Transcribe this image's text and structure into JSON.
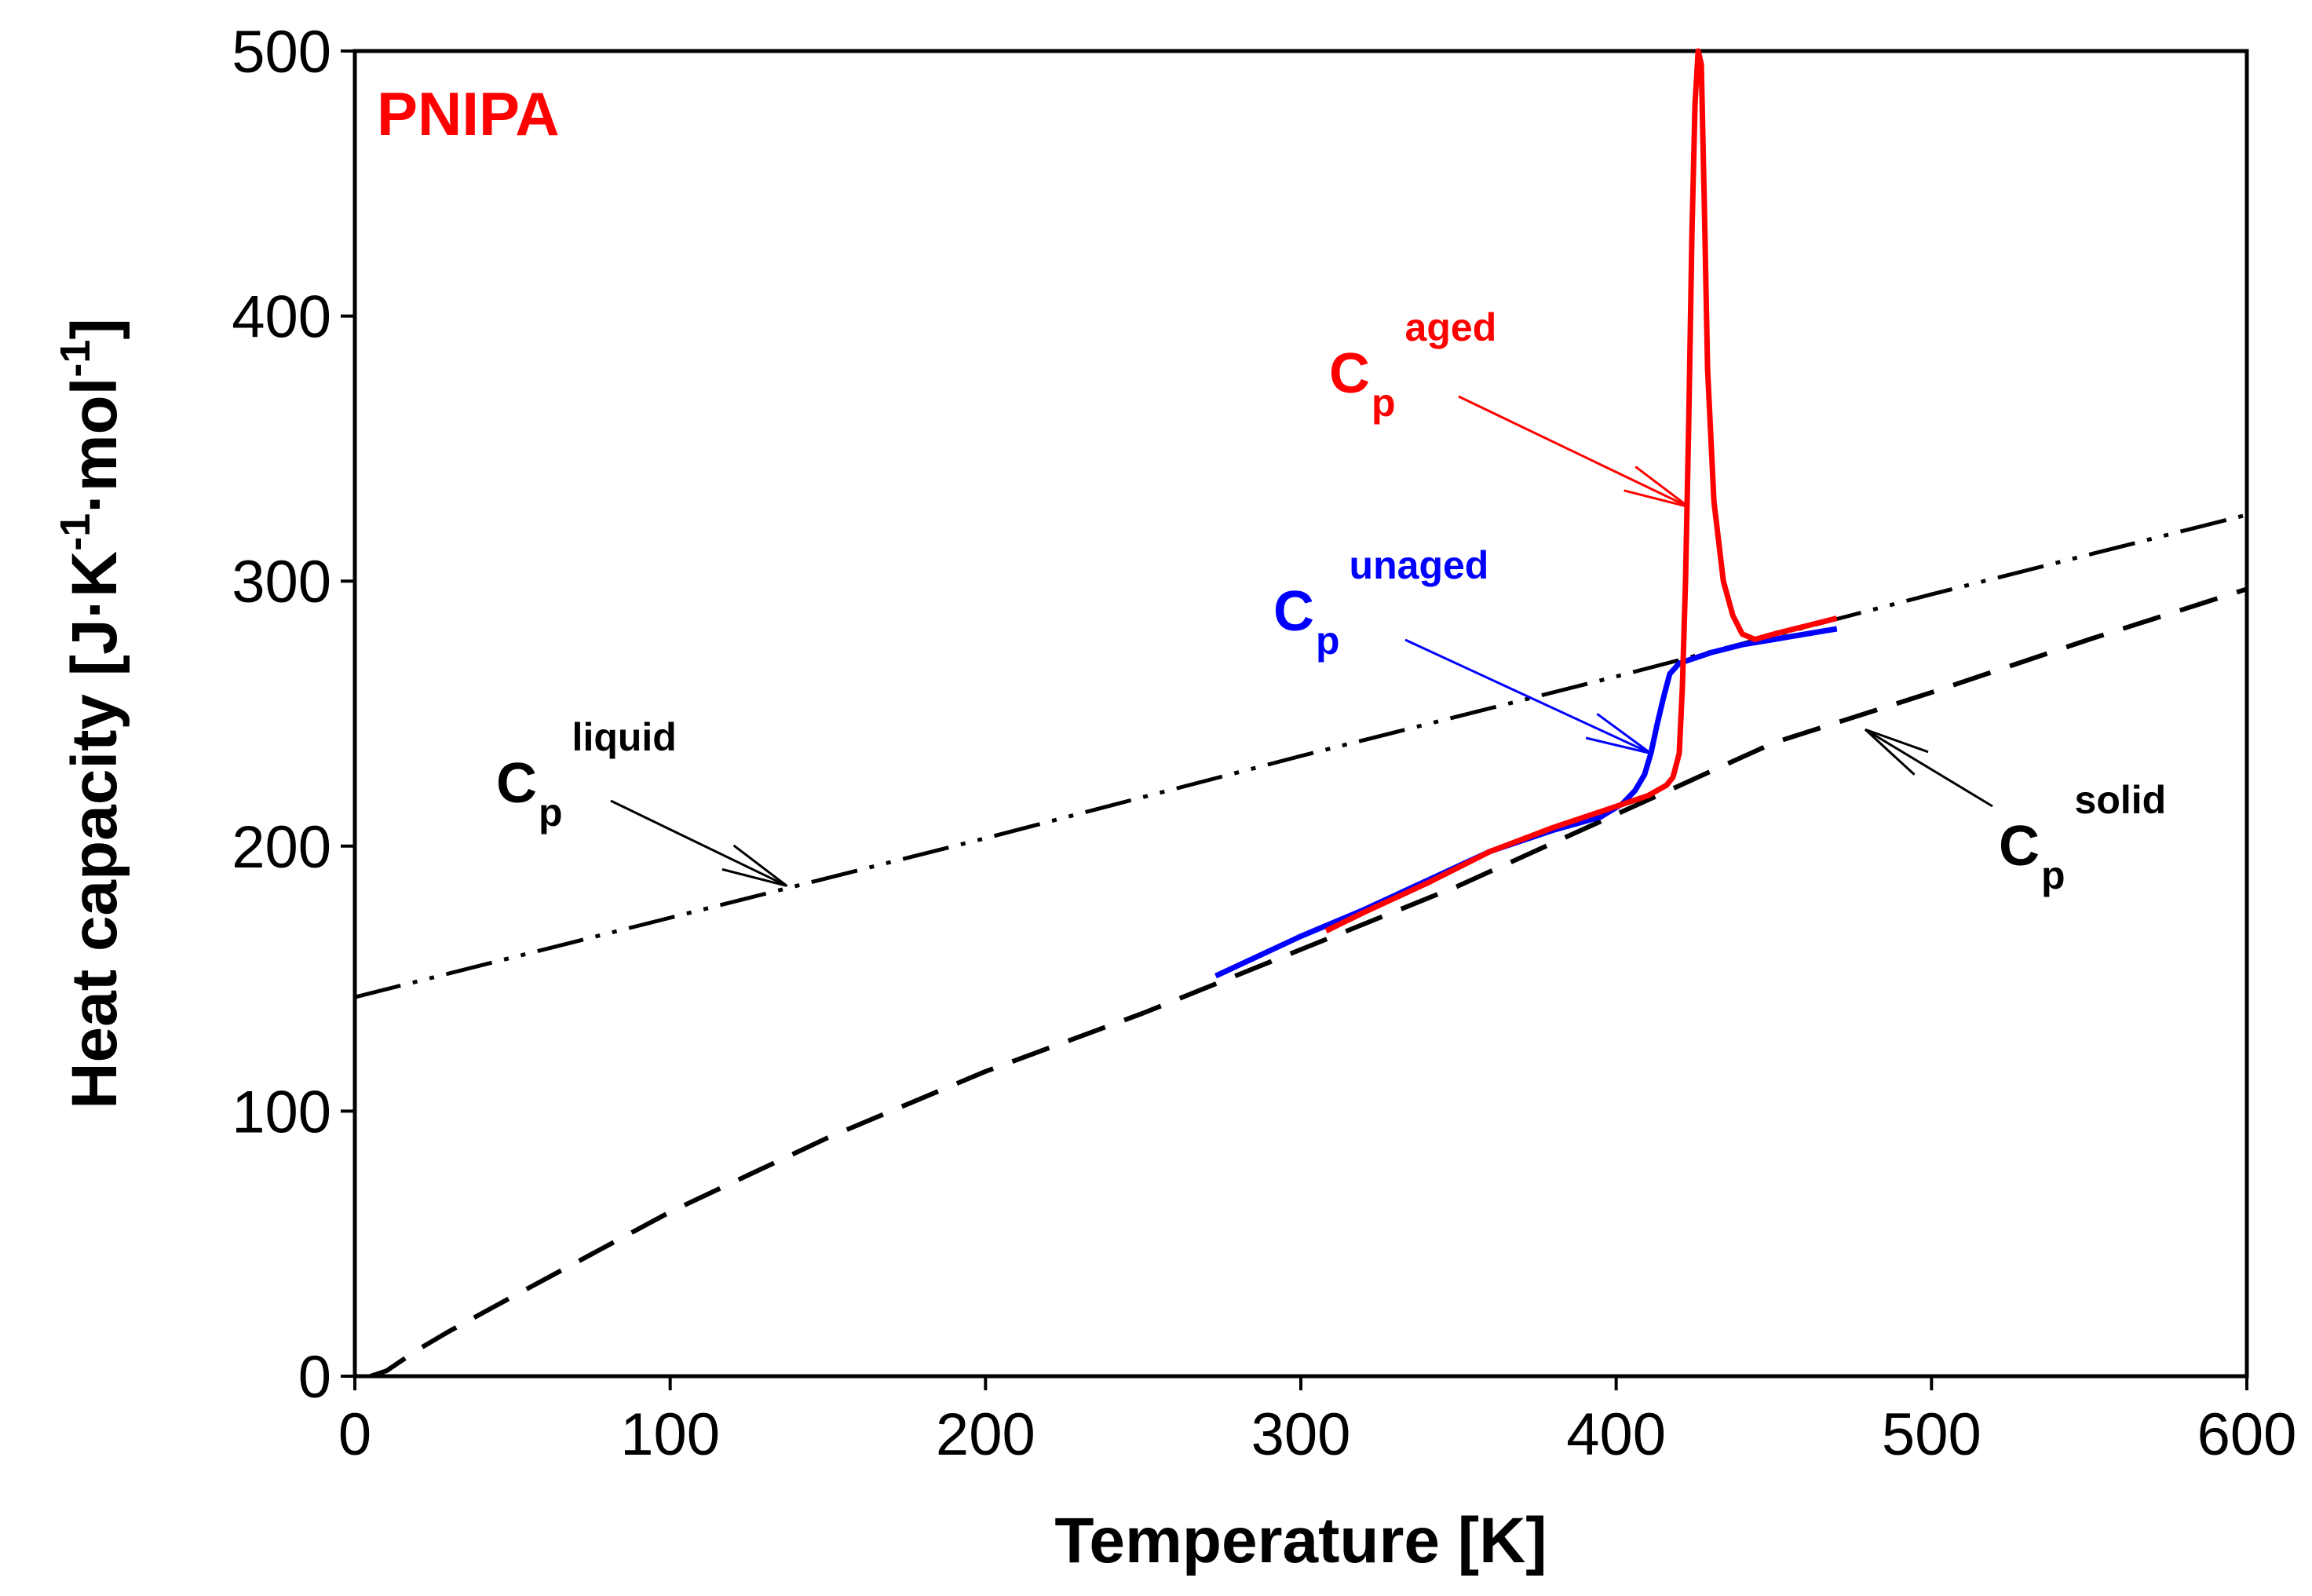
{
  "chart_data": {
    "type": "line",
    "title": "PNIPA",
    "xlabel": "Temperature [K]",
    "ylabel": {
      "main": "Heat capacity [J·K",
      "sup1": "-1",
      "mid": "·mol",
      "sup2": "-1",
      "end": "]"
    },
    "xlim": [
      0,
      600
    ],
    "ylim": [
      0,
      500
    ],
    "xticks": [
      "0",
      "100",
      "200",
      "300",
      "400",
      "500",
      "600"
    ],
    "yticks": [
      "0",
      "100",
      "200",
      "300",
      "400",
      "500"
    ],
    "grid": false,
    "series": [
      {
        "name": "Cp liquid",
        "style": "dash-dot-dot",
        "color": "#000000",
        "points": [
          [
            0,
            143
          ],
          [
            100,
            173
          ],
          [
            200,
            203
          ],
          [
            300,
            234
          ],
          [
            400,
            264
          ],
          [
            500,
            295
          ],
          [
            600,
            325
          ]
        ]
      },
      {
        "name": "Cp solid",
        "style": "dashed",
        "color": "#000000",
        "points": [
          [
            5,
            0
          ],
          [
            10,
            2
          ],
          [
            20,
            10
          ],
          [
            30,
            17
          ],
          [
            50,
            30
          ],
          [
            75,
            46
          ],
          [
            100,
            62
          ],
          [
            125,
            76
          ],
          [
            150,
            90
          ],
          [
            200,
            115
          ],
          [
            250,
            137
          ],
          [
            300,
            161
          ],
          [
            350,
            185
          ],
          [
            400,
            212
          ],
          [
            450,
            239
          ],
          [
            500,
            258
          ],
          [
            550,
            278
          ],
          [
            600,
            297
          ]
        ]
      },
      {
        "name": "Cp unaged",
        "style": "solid",
        "color": "#0000ff",
        "points": [
          [
            273,
            151
          ],
          [
            300,
            166
          ],
          [
            320,
            176
          ],
          [
            340,
            187
          ],
          [
            360,
            198
          ],
          [
            380,
            206
          ],
          [
            395,
            211
          ],
          [
            402,
            216
          ],
          [
            406,
            221
          ],
          [
            409,
            227
          ],
          [
            411,
            235
          ],
          [
            413,
            246
          ],
          [
            415,
            256
          ],
          [
            417,
            265
          ],
          [
            420,
            269
          ],
          [
            430,
            273
          ],
          [
            440,
            276
          ],
          [
            450,
            278
          ],
          [
            460,
            280
          ],
          [
            470,
            282
          ]
        ]
      },
      {
        "name": "Cp aged",
        "style": "solid",
        "color": "#ff0000",
        "points": [
          [
            308,
            168
          ],
          [
            320,
            175
          ],
          [
            340,
            186
          ],
          [
            360,
            198
          ],
          [
            380,
            207
          ],
          [
            400,
            215
          ],
          [
            410,
            219
          ],
          [
            416,
            223
          ],
          [
            418,
            226
          ],
          [
            420,
            235
          ],
          [
            421,
            260
          ],
          [
            422,
            300
          ],
          [
            423,
            360
          ],
          [
            424,
            430
          ],
          [
            425,
            480
          ],
          [
            426,
            500
          ],
          [
            427,
            495
          ],
          [
            428,
            440
          ],
          [
            429,
            380
          ],
          [
            431,
            330
          ],
          [
            434,
            300
          ],
          [
            437,
            287
          ],
          [
            440,
            280
          ],
          [
            444,
            278
          ],
          [
            450,
            280
          ],
          [
            460,
            283
          ],
          [
            470,
            286
          ]
        ]
      }
    ],
    "annotations": [
      {
        "id": "liquid",
        "base": "C",
        "sub": "p",
        "sup": "liquid",
        "color": "#000000",
        "target": [
          137,
          185
        ]
      },
      {
        "id": "solid",
        "base": "C",
        "sub": "p",
        "sup": "solid",
        "color": "#000000",
        "target": [
          479,
          244
        ]
      },
      {
        "id": "unaged",
        "base": "C",
        "sub": "p",
        "sup": "unaged",
        "color": "#0000ff",
        "target": [
          411,
          235
        ]
      },
      {
        "id": "aged",
        "base": "C",
        "sub": "p",
        "sup": "aged",
        "color": "#ff0000",
        "target": [
          423,
          328
        ]
      }
    ]
  }
}
